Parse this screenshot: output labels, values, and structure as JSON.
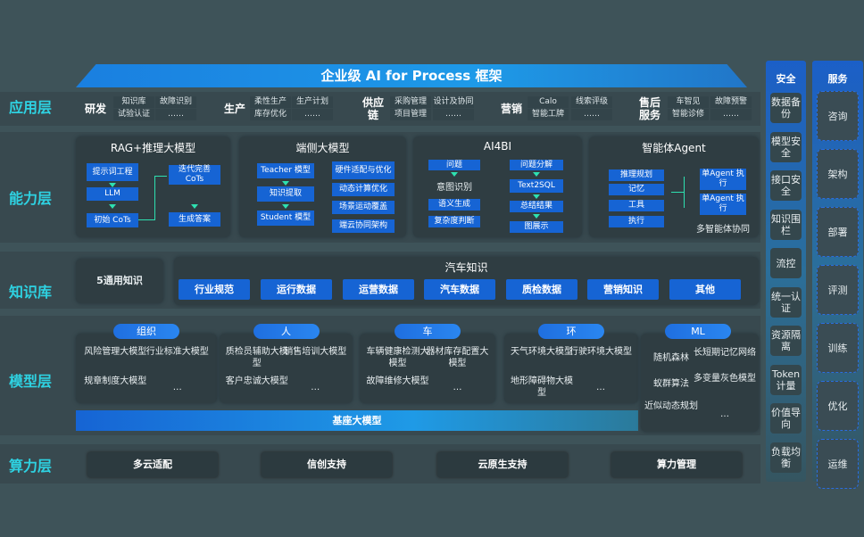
{
  "title": "企业级 AI for Process 框架",
  "layers": {
    "app": "应用层",
    "capability": "能力层",
    "knowledge": "知识库",
    "model": "模型层",
    "compute": "算力层"
  },
  "app": [
    {
      "name": "研发",
      "items": [
        "知识库",
        "试验认证",
        "故障识别",
        "……"
      ]
    },
    {
      "name": "生产",
      "items": [
        "柔性生产",
        "库存优化",
        "生产计划",
        "……"
      ]
    },
    {
      "name": "供应链",
      "items": [
        "采购管理",
        "项目管理",
        "设计及协同",
        "……"
      ]
    },
    {
      "name": "营销",
      "items": [
        "Calo",
        "智能工牌",
        "线索评级",
        "……"
      ]
    },
    {
      "name": "售后服务",
      "items": [
        "车智见",
        "智能诊修",
        "故障预警",
        "……"
      ]
    }
  ],
  "capability": {
    "rag": {
      "title": "RAG+推理大模型",
      "items": [
        "提示词工程",
        "LLM",
        "初始 CoTs",
        "迭代完善 CoTs",
        "生成答案"
      ]
    },
    "edge": {
      "title": "端侧大模型",
      "left": [
        "Teacher 模型",
        "知识提取",
        "Student 模型"
      ],
      "right": [
        "硬件适配与优化",
        "动态计算优化",
        "场景运动覆盖",
        "端云协同架构"
      ]
    },
    "ai4bi": {
      "title": "AI4BI",
      "left": [
        "问题",
        "意图识别",
        "语义生成",
        "复杂度判断"
      ],
      "right": [
        "问题分解",
        "Text2SQL",
        "总结结果",
        "图展示"
      ]
    },
    "agent": {
      "title": "智能体Agent",
      "left": [
        "推理规划",
        "记忆",
        "工具",
        "执行"
      ],
      "right": [
        "单Agent 执行",
        "单Agent 执行"
      ],
      "footer": "多智能体协同"
    }
  },
  "knowledge": {
    "general": "5通用知识",
    "auto_title": "汽车知识",
    "pills": [
      "行业规范",
      "运行数据",
      "运营数据",
      "汽车数据",
      "质检数据",
      "营销知识",
      "其他"
    ]
  },
  "model": {
    "groups": [
      {
        "name": "组织",
        "items": [
          "风险管理大模型",
          "行业标准大模型",
          "规章制度大模型",
          "…"
        ]
      },
      {
        "name": "人",
        "items": [
          "质检员辅助大模型",
          "销售培训大模型",
          "客户忠诚大模型",
          "…"
        ]
      },
      {
        "name": "车",
        "items": [
          "车辆健康检测大模型",
          "器材库存配置大模型",
          "故障维修大模型",
          "…"
        ]
      },
      {
        "name": "环",
        "items": [
          "天气环境大模型",
          "行驶环境大模型",
          "地形障碍物大模型",
          "…"
        ]
      }
    ],
    "ml": {
      "name": "ML",
      "items": [
        "随机森林",
        "长短期记忆网络",
        "蚁群算法",
        "多变量灰色模型",
        "近似动态规划",
        "…"
      ]
    },
    "base": "基座大模型"
  },
  "compute": [
    "多云适配",
    "信创支持",
    "云原生支持",
    "算力管理"
  ],
  "security": {
    "title": "安全",
    "items": [
      "数据备份",
      "模型安全",
      "接口安全",
      "知识围栏",
      "流控",
      "统一认证",
      "资源隔离",
      "Token计量",
      "价值导向",
      "负载均衡"
    ]
  },
  "service": {
    "title": "服务",
    "items": [
      "咨询",
      "架构",
      "部署",
      "评测",
      "训练",
      "优化",
      "运维"
    ]
  },
  "colors": {
    "accent": "#1664d4",
    "label": "#2ed2e2",
    "background": "#3e5359"
  }
}
